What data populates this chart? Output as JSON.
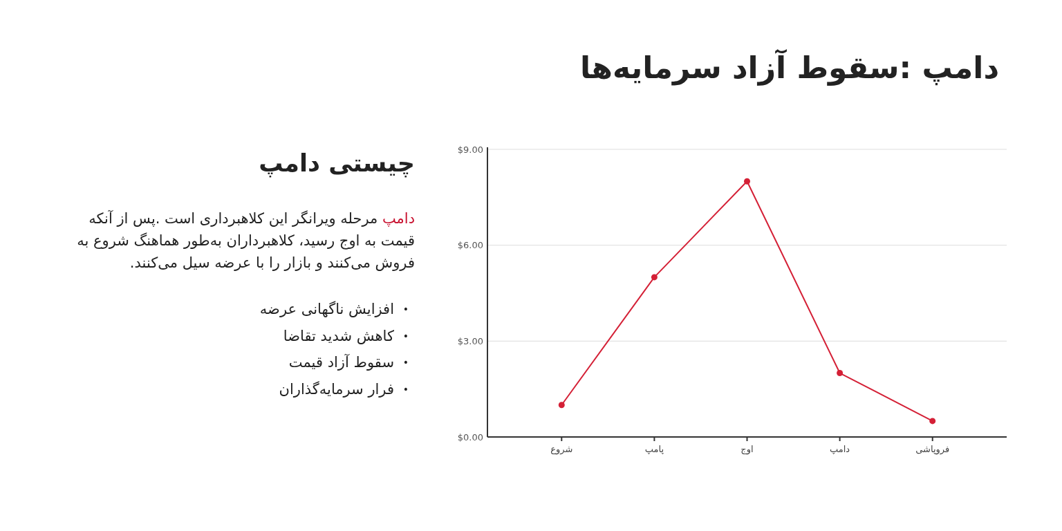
{
  "chart_data": {
    "type": "line",
    "title": "دامپ :سقوط آزاد سرمایه‌ها",
    "subtitle": "چیستی دامپ",
    "annotations": [
      "دامپ مرحله ویرانگر این کلاهبرداری است .پس از آنکه قیمت به اوج رسید، کلاهبرداران به‌طور هماهنگ شروع به فروش می‌کنند و بازار را با عرضه سیل می‌کنند.",
      "• افزایش ناگهانی عرضه",
      "• کاهش شدید تقاضا",
      "• سقوط آزاد قیمت",
      "• فرار سرمایه‌گذاران"
    ],
    "categories": [
      "شروع",
      "پامپ",
      "اوج",
      "دامپ",
      "فروپاشی"
    ],
    "series": [
      {
        "color": "#d42036",
        "values": [
          1,
          5,
          8,
          2,
          0.5
        ]
      }
    ],
    "ylim": [
      0,
      9
    ],
    "yticks": [
      {
        "value": 0,
        "label": "$0.00"
      },
      {
        "value": 3,
        "label": "$3.00"
      },
      {
        "value": 6,
        "label": "$6.00"
      },
      {
        "value": 9,
        "label": "$9.00"
      }
    ],
    "grid": "y",
    "marker": "circle",
    "line_style": "solid"
  }
}
